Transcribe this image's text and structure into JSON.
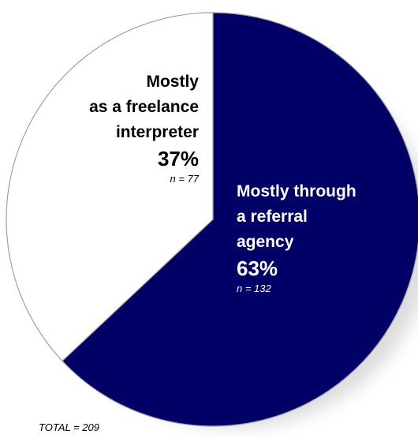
{
  "chart_data": {
    "type": "pie",
    "total": 209,
    "total_label": "TOTAL = 209",
    "slices": [
      {
        "key": "freelance",
        "label_lines": [
          "Mostly",
          "as a freelance",
          "interpreter"
        ],
        "percent": 37,
        "percent_label": "37%",
        "count": 77,
        "n_label": "n = 77",
        "color": "#ffffff"
      },
      {
        "key": "agency",
        "label_lines": [
          "Mostly through",
          "a referral",
          "agency"
        ],
        "percent": 63,
        "percent_label": "63%",
        "count": 132,
        "n_label": "n = 132",
        "color": "#000066"
      }
    ]
  },
  "colors": {
    "outline": "#a0a0a0",
    "shadow": "#d9d9d9"
  }
}
